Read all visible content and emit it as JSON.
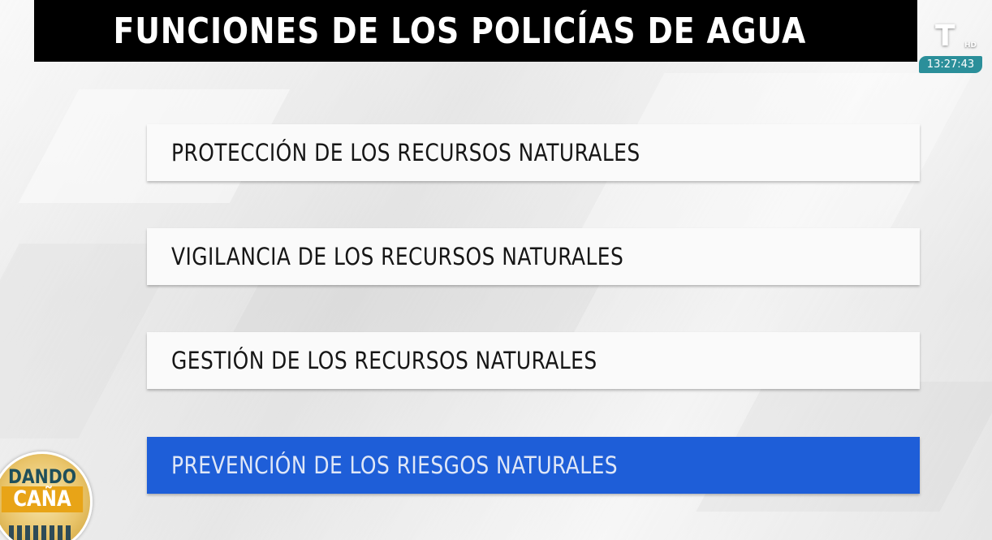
{
  "title": "FUNCIONES DE LOS POLICÍAS DE AGUA",
  "items": [
    {
      "label": "PROTECCIÓN DE LOS RECURSOS NATURALES",
      "highlighted": false
    },
    {
      "label": "VIGILANCIA DE LOS RECURSOS NATURALES",
      "highlighted": false
    },
    {
      "label": "GESTIÓN DE LOS RECURSOS NATURALES",
      "highlighted": false
    },
    {
      "label": "PREVENCIÓN DE LOS RIESGOS NATURALES",
      "highlighted": true
    }
  ],
  "channel": {
    "logo": "T",
    "hd": "HD",
    "time": "13:27:43",
    "icon": "channel-logo-icon"
  },
  "program": {
    "line1": "DANDO",
    "line2": "CAÑA"
  },
  "colors": {
    "title_bar": "#000000",
    "highlight": "#1e5ed8",
    "clock_bg": "#2b8f9a",
    "badge_gold": "#e8a417"
  }
}
